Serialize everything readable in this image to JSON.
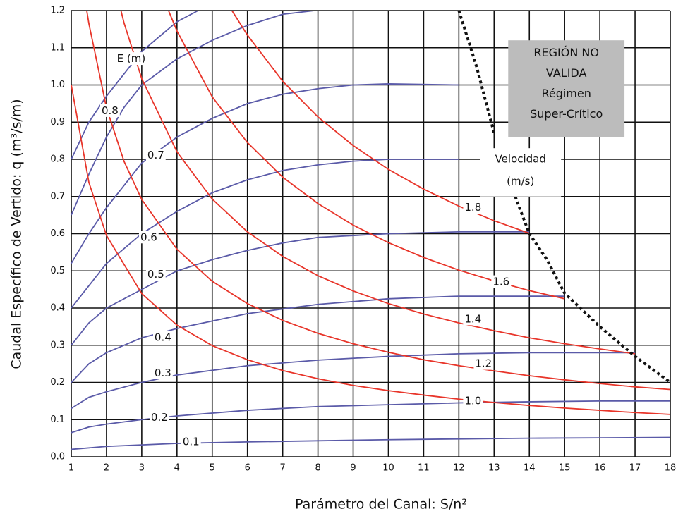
{
  "chart_data": {
    "type": "line",
    "x_label": "Parámetro del Canal:  S/n²",
    "y_label": "Caudal Específico de Vertido: q  (m³/s/m)",
    "xlim": [
      1,
      18
    ],
    "ylim": [
      0,
      1.2
    ],
    "xticks": [
      1,
      2,
      3,
      4,
      5,
      6,
      7,
      8,
      9,
      10,
      11,
      12,
      13,
      14,
      15,
      16,
      17,
      18
    ],
    "yticks": [
      {
        "value": 0,
        "label": "0.0"
      },
      0.1,
      0.2,
      0.3,
      0.4,
      0.5,
      0.6,
      0.7,
      0.8,
      0.9,
      {
        "value": 1,
        "label": "1.0"
      },
      1.1,
      1.2
    ],
    "grid": true,
    "annotations": {
      "energy": "E (m)",
      "velocity": [
        "Velocidad",
        "(m/s)"
      ],
      "region": [
        "REGIÓN NO",
        "VALIDA",
        "Régimen",
        "Super-Crítico"
      ]
    },
    "series": [
      {
        "name": "0.1",
        "color": "#5a5aa8",
        "x": [
          1,
          2,
          3,
          4,
          6,
          8,
          10,
          12,
          14,
          16,
          18
        ],
        "values": [
          0.02,
          0.028,
          0.032,
          0.036,
          0.04,
          0.043,
          0.046,
          0.048,
          0.05,
          0.051,
          0.052
        ]
      },
      {
        "name": "0.2",
        "color": "#5a5aa8",
        "x": [
          1,
          1.5,
          2,
          3,
          4,
          6,
          8,
          10,
          12,
          14,
          16,
          18
        ],
        "values": [
          0.065,
          0.08,
          0.088,
          0.1,
          0.11,
          0.125,
          0.135,
          0.14,
          0.145,
          0.148,
          0.15,
          0.15
        ]
      },
      {
        "name": "0.3",
        "color": "#5a5aa8",
        "x": [
          1,
          1.5,
          2,
          3,
          4,
          6,
          8,
          10,
          12,
          14,
          16,
          17
        ],
        "values": [
          0.13,
          0.16,
          0.175,
          0.2,
          0.22,
          0.245,
          0.26,
          0.27,
          0.277,
          0.28,
          0.28,
          0.28
        ]
      },
      {
        "name": "0.4",
        "color": "#5a5aa8",
        "x": [
          1,
          1.5,
          2,
          3,
          4,
          6,
          8,
          10,
          12,
          15
        ],
        "values": [
          0.2,
          0.25,
          0.28,
          0.32,
          0.345,
          0.385,
          0.41,
          0.425,
          0.432,
          0.432
        ]
      },
      {
        "name": "0.5",
        "color": "#5a5aa8",
        "x": [
          1,
          1.5,
          2,
          3,
          4,
          5,
          6,
          7,
          8,
          10,
          12,
          14
        ],
        "values": [
          0.3,
          0.36,
          0.4,
          0.45,
          0.5,
          0.53,
          0.555,
          0.575,
          0.59,
          0.6,
          0.605,
          0.605
        ]
      },
      {
        "name": "0.6",
        "color": "#5a5aa8",
        "x": [
          1,
          1.5,
          2,
          3,
          4,
          5,
          6,
          7,
          8,
          9,
          10,
          12
        ],
        "values": [
          0.4,
          0.46,
          0.52,
          0.6,
          0.66,
          0.71,
          0.745,
          0.77,
          0.785,
          0.795,
          0.8,
          0.8
        ]
      },
      {
        "name": "0.7",
        "color": "#5a5aa8",
        "x": [
          1,
          1.5,
          2,
          3,
          4,
          5,
          6,
          7,
          8,
          9,
          10,
          12
        ],
        "values": [
          0.52,
          0.6,
          0.67,
          0.79,
          0.86,
          0.91,
          0.95,
          0.975,
          0.99,
          1.0,
          1.003,
          1.0
        ]
      },
      {
        "name": "0.8",
        "color": "#5a5aa8",
        "x": [
          1,
          1.5,
          2,
          2.5,
          3,
          4,
          5,
          6,
          7,
          7.9
        ],
        "values": [
          0.65,
          0.76,
          0.86,
          0.94,
          1.0,
          1.07,
          1.12,
          1.16,
          1.19,
          1.2
        ]
      },
      {
        "color": "#5a5aa8",
        "x": [
          1,
          1.5,
          2,
          3,
          4,
          4.6
        ],
        "values": [
          0.8,
          0.9,
          0.97,
          1.09,
          1.17,
          1.2
        ]
      },
      {
        "name": "1.0",
        "color": "#e8352a",
        "x": [
          1,
          1.5,
          2,
          3,
          4,
          5,
          6,
          7,
          8,
          9,
          10,
          11,
          12,
          13,
          14,
          15,
          16,
          17,
          18
        ],
        "values": [
          1.0,
          0.738,
          0.595,
          0.439,
          0.354,
          0.299,
          0.261,
          0.232,
          0.21,
          0.192,
          0.178,
          0.166,
          0.155,
          0.146,
          0.138,
          0.131,
          0.125,
          0.119,
          0.114
        ]
      },
      {
        "name": "1.2",
        "color": "#e8352a",
        "x": [
          1.44,
          1.5,
          2,
          2.5,
          3,
          4,
          5,
          6,
          7,
          8,
          9,
          10,
          11,
          12,
          13,
          14,
          15,
          16,
          17,
          18
        ],
        "values": [
          1.2,
          1.165,
          0.938,
          0.794,
          0.692,
          0.558,
          0.472,
          0.412,
          0.367,
          0.332,
          0.304,
          0.281,
          0.261,
          0.245,
          0.231,
          0.218,
          0.207,
          0.197,
          0.188,
          0.181
        ]
      },
      {
        "name": "1.4",
        "color": "#e8352a",
        "x": [
          2.41,
          2.5,
          3,
          4,
          5,
          6,
          7,
          8,
          9,
          10,
          11,
          12,
          13,
          14,
          15,
          16,
          17
        ],
        "values": [
          1.2,
          1.166,
          1.017,
          0.82,
          0.693,
          0.605,
          0.539,
          0.487,
          0.446,
          0.412,
          0.384,
          0.36,
          0.339,
          0.32,
          0.304,
          0.29,
          0.277
        ]
      },
      {
        "name": "1.6",
        "color": "#e8352a",
        "x": [
          3.76,
          4,
          5,
          6,
          7,
          8,
          9,
          10,
          11,
          12,
          13,
          14,
          15
        ],
        "values": [
          1.2,
          1.145,
          0.968,
          0.845,
          0.752,
          0.681,
          0.623,
          0.576,
          0.536,
          0.502,
          0.473,
          0.447,
          0.425
        ]
      },
      {
        "name": "1.8",
        "color": "#e8352a",
        "x": [
          5.56,
          6,
          7,
          8,
          9,
          10,
          11,
          12,
          13,
          14
        ],
        "values": [
          1.2,
          1.134,
          1.01,
          0.914,
          0.837,
          0.773,
          0.72,
          0.674,
          0.635,
          0.601
        ]
      },
      {
        "color": "#111111",
        "dashed": true,
        "x": [
          12,
          12.5,
          13,
          13.3,
          13.6,
          14,
          14.5,
          15,
          16,
          17,
          18
        ],
        "values": [
          1.2,
          1.05,
          0.87,
          null,
          0.7,
          0.6,
          0.53,
          0.44,
          0.35,
          0.27,
          0.2
        ]
      }
    ]
  }
}
